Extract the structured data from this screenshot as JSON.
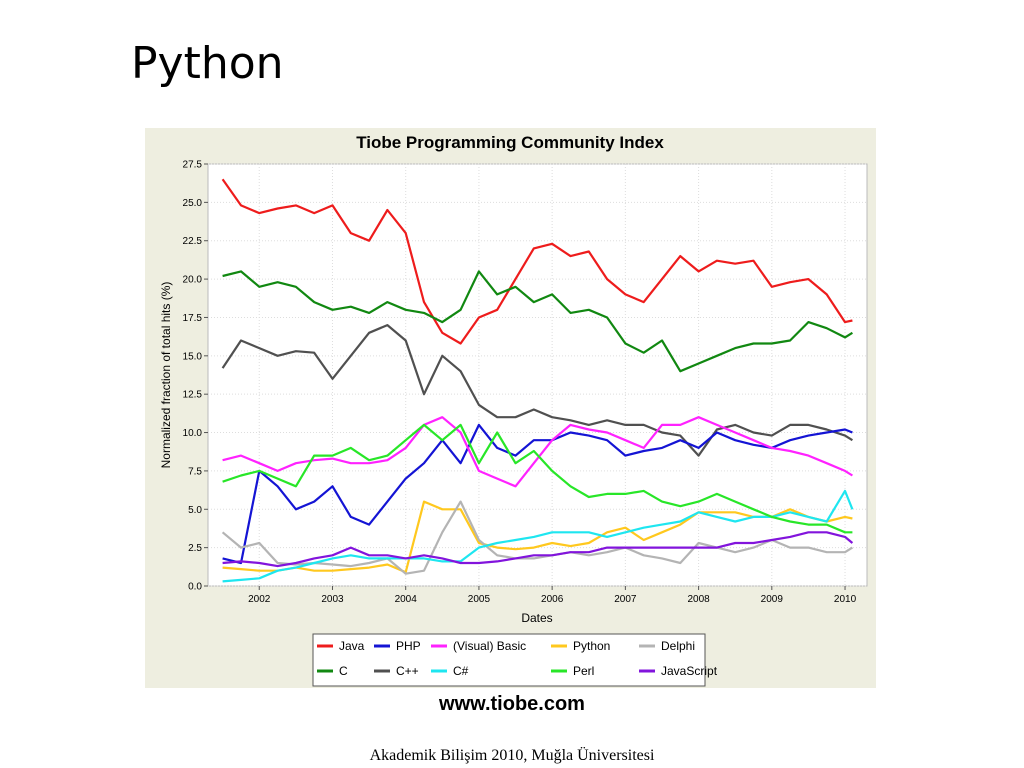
{
  "slide": {
    "title": "Python",
    "source": "www.tiobe.com",
    "footer": "Akademik Bilişim 2010, Muğla Üniversitesi"
  },
  "chart_data": {
    "type": "line",
    "title": "Tiobe Programming Community Index",
    "xlabel": "Dates",
    "ylabel": "Normalized fraction of total hits (%)",
    "xlim": [
      2001.3,
      2010.3
    ],
    "ylim": [
      0,
      27.5
    ],
    "x_ticks": [
      "2002",
      "2003",
      "2004",
      "2005",
      "2006",
      "2007",
      "2008",
      "2009",
      "2010"
    ],
    "y_ticks": [
      "0.0",
      "2.5",
      "5.0",
      "7.5",
      "10.0",
      "12.5",
      "15.0",
      "17.5",
      "20.0",
      "22.5",
      "25.0",
      "27.5"
    ],
    "grid": true,
    "legend_position": "bottom",
    "x": [
      2001.5,
      2001.75,
      2002.0,
      2002.25,
      2002.5,
      2002.75,
      2003.0,
      2003.25,
      2003.5,
      2003.75,
      2004.0,
      2004.25,
      2004.5,
      2004.75,
      2005.0,
      2005.25,
      2005.5,
      2005.75,
      2006.0,
      2006.25,
      2006.5,
      2006.75,
      2007.0,
      2007.25,
      2007.5,
      2007.75,
      2008.0,
      2008.25,
      2008.5,
      2008.75,
      2009.0,
      2009.25,
      2009.5,
      2009.75,
      2010.0,
      2010.1
    ],
    "series": [
      {
        "name": "Java",
        "color": "#ee1c1c",
        "values": [
          26.5,
          24.8,
          24.3,
          24.6,
          24.8,
          24.3,
          24.8,
          23.0,
          22.5,
          24.5,
          23.0,
          18.5,
          16.5,
          15.8,
          17.5,
          18.0,
          20.0,
          22.0,
          22.3,
          21.5,
          21.8,
          20.0,
          19.0,
          18.5,
          20.0,
          21.5,
          20.5,
          21.2,
          21.0,
          21.2,
          19.5,
          19.8,
          20.0,
          19.0,
          17.2,
          17.3
        ]
      },
      {
        "name": "C",
        "color": "#118811",
        "values": [
          20.2,
          20.5,
          19.5,
          19.8,
          19.5,
          18.5,
          18.0,
          18.2,
          17.8,
          18.5,
          18.0,
          17.8,
          17.2,
          18.0,
          20.5,
          19.0,
          19.5,
          18.5,
          19.0,
          17.8,
          18.0,
          17.5,
          15.8,
          15.2,
          16.0,
          14.0,
          14.5,
          15.0,
          15.5,
          15.8,
          15.8,
          16.0,
          17.2,
          16.8,
          16.2,
          16.5
        ]
      },
      {
        "name": "C++",
        "color": "#505050",
        "values": [
          14.2,
          16.0,
          15.5,
          15.0,
          15.3,
          15.2,
          13.5,
          15.0,
          16.5,
          17.0,
          16.0,
          12.5,
          15.0,
          14.0,
          11.8,
          11.0,
          11.0,
          11.5,
          11.0,
          10.8,
          10.5,
          10.8,
          10.5,
          10.5,
          10.0,
          9.8,
          8.5,
          10.2,
          10.5,
          10.0,
          9.8,
          10.5,
          10.5,
          10.2,
          9.8,
          9.5
        ]
      },
      {
        "name": "PHP",
        "color": "#1414d4",
        "values": [
          1.8,
          1.5,
          7.5,
          6.5,
          5.0,
          5.5,
          6.5,
          4.5,
          4.0,
          5.5,
          7.0,
          8.0,
          9.5,
          8.0,
          10.5,
          9.0,
          8.5,
          9.5,
          9.5,
          10.0,
          9.8,
          9.5,
          8.5,
          8.8,
          9.0,
          9.5,
          9.0,
          10.0,
          9.5,
          9.2,
          9.0,
          9.5,
          9.8,
          10.0,
          10.2,
          10.0
        ]
      },
      {
        "name": "(Visual) Basic",
        "color": "#ff22ff",
        "values": [
          8.2,
          8.5,
          8.0,
          7.5,
          8.0,
          8.2,
          8.3,
          8.0,
          8.0,
          8.2,
          9.0,
          10.5,
          11.0,
          10.0,
          7.5,
          7.0,
          6.5,
          8.0,
          9.5,
          10.5,
          10.2,
          10.0,
          9.5,
          9.0,
          10.5,
          10.5,
          11.0,
          10.5,
          10.0,
          9.5,
          9.0,
          8.8,
          8.5,
          8.0,
          7.5,
          7.2
        ]
      },
      {
        "name": "Python",
        "color": "#ffc81e",
        "values": [
          1.2,
          1.1,
          1.0,
          1.0,
          1.2,
          1.0,
          1.0,
          1.1,
          1.2,
          1.4,
          0.9,
          5.5,
          5.0,
          5.0,
          2.8,
          2.5,
          2.4,
          2.5,
          2.8,
          2.6,
          2.8,
          3.5,
          3.8,
          3.0,
          3.5,
          4.0,
          4.8,
          4.8,
          4.8,
          4.5,
          4.5,
          5.0,
          4.5,
          4.2,
          4.5,
          4.4
        ]
      },
      {
        "name": "Delphi",
        "color": "#b4b4b4",
        "values": [
          3.5,
          2.5,
          2.8,
          1.5,
          1.4,
          1.5,
          1.4,
          1.3,
          1.5,
          1.8,
          0.8,
          1.0,
          3.5,
          5.5,
          3.0,
          2.0,
          1.8,
          1.8,
          2.0,
          2.2,
          2.0,
          2.2,
          2.5,
          2.0,
          1.8,
          1.5,
          2.8,
          2.5,
          2.2,
          2.5,
          3.0,
          2.5,
          2.5,
          2.2,
          2.2,
          2.5
        ]
      },
      {
        "name": "C#",
        "color": "#1ee6f0",
        "values": [
          0.3,
          0.4,
          0.5,
          1.0,
          1.2,
          1.5,
          1.8,
          2.0,
          1.8,
          1.8,
          1.8,
          1.8,
          1.6,
          1.6,
          2.5,
          2.8,
          3.0,
          3.2,
          3.5,
          3.5,
          3.5,
          3.2,
          3.5,
          3.8,
          4.0,
          4.2,
          4.8,
          4.5,
          4.2,
          4.5,
          4.5,
          4.8,
          4.5,
          4.2,
          6.2,
          5.0
        ]
      },
      {
        "name": "Perl",
        "color": "#28e628",
        "values": [
          6.8,
          7.2,
          7.5,
          7.0,
          6.5,
          8.5,
          8.5,
          9.0,
          8.2,
          8.5,
          9.5,
          10.5,
          9.5,
          10.5,
          8.0,
          10.0,
          8.0,
          8.8,
          7.5,
          6.5,
          5.8,
          6.0,
          6.0,
          6.2,
          5.5,
          5.2,
          5.5,
          6.0,
          5.5,
          5.0,
          4.5,
          4.2,
          4.0,
          4.0,
          3.5,
          3.5
        ]
      },
      {
        "name": "JavaScript",
        "color": "#8214dc",
        "values": [
          1.5,
          1.6,
          1.5,
          1.3,
          1.5,
          1.8,
          2.0,
          2.5,
          2.0,
          2.0,
          1.8,
          2.0,
          1.8,
          1.5,
          1.5,
          1.6,
          1.8,
          2.0,
          2.0,
          2.2,
          2.2,
          2.5,
          2.5,
          2.5,
          2.5,
          2.5,
          2.5,
          2.5,
          2.8,
          2.8,
          3.0,
          3.2,
          3.5,
          3.5,
          3.2,
          2.8
        ]
      }
    ]
  }
}
